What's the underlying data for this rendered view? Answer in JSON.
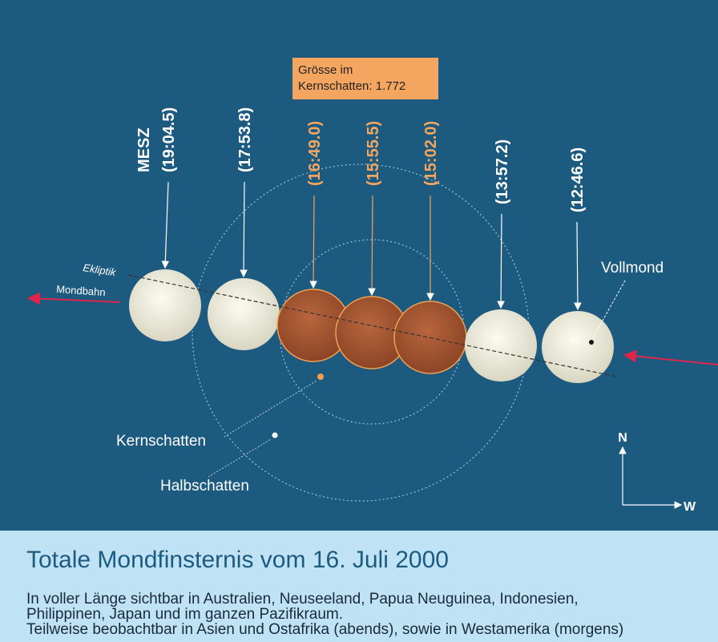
{
  "annotation": [
    "Grösse im",
    "Kernschatten: 1.772"
  ],
  "timezone": "MESZ",
  "times": [
    "(19:04.5)",
    "(17:53.8)",
    "(16:49.0)",
    "(15:55.5)",
    "(15:02.0)",
    "(13:57.2)",
    "(12:46.6)"
  ],
  "labels": {
    "ecliptic": "Ekliptik",
    "orbit": "Mondbahn",
    "full_moon": "Vollmond",
    "umbra": "Kernschatten",
    "penumbra": "Halbschatten",
    "north": "N",
    "west": "W"
  },
  "title": "Totale Mondfinsternis vom 16. Juli 2000",
  "description": [
    "In voller Länge sichtbar in Australien, Neuseeland, Papua Neuguinea, Indonesien,",
    "Philippinen, Japan und im ganzen Pazifikraum.",
    "Teilweise beobachtbar in Asien und Ostafrika (abends), sowie in Westamerika (morgens)"
  ]
}
